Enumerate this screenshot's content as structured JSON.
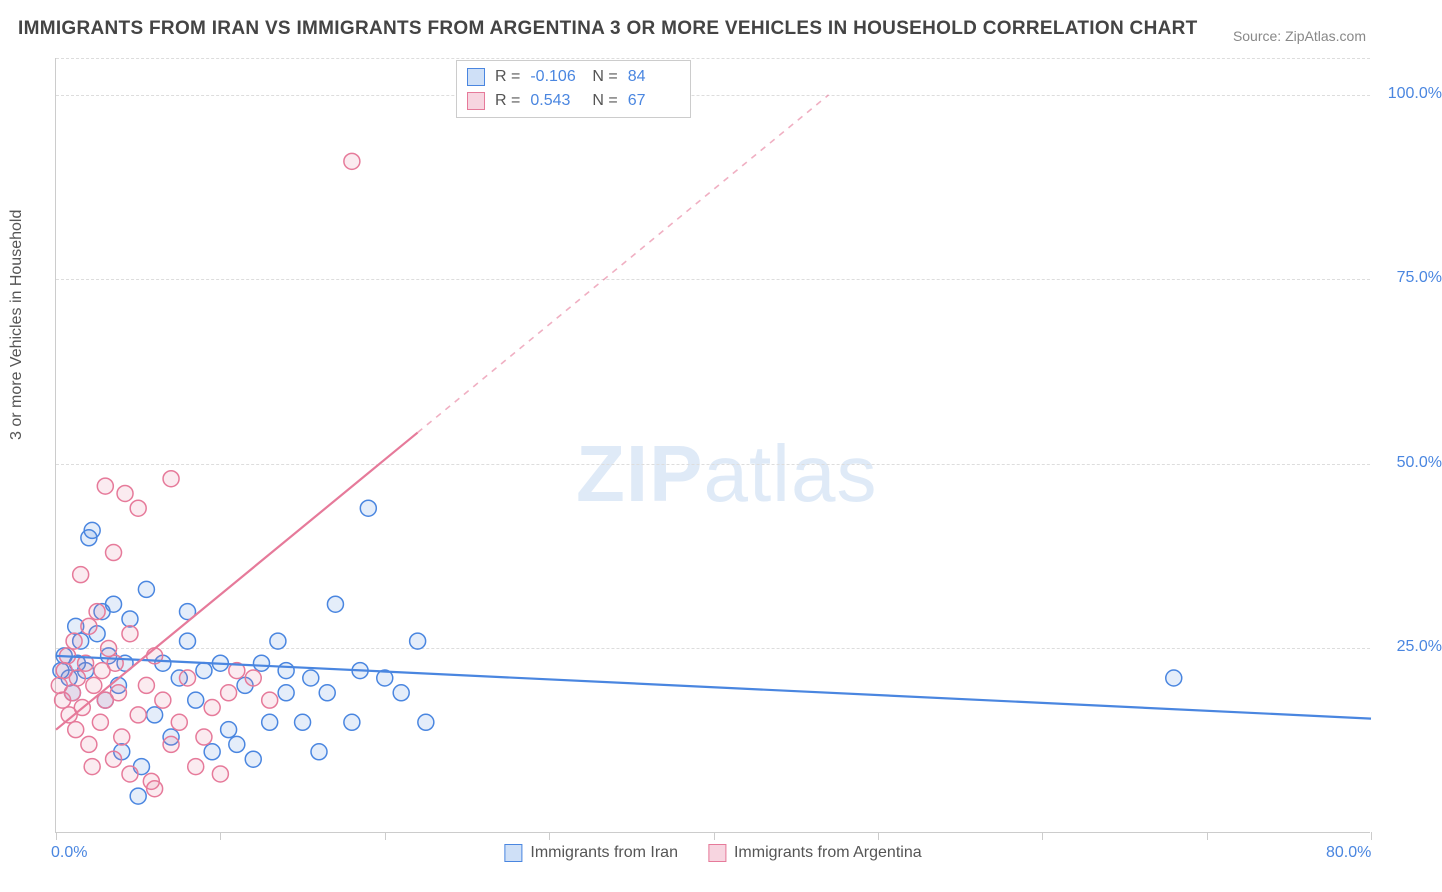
{
  "title": "IMMIGRANTS FROM IRAN VS IMMIGRANTS FROM ARGENTINA 3 OR MORE VEHICLES IN HOUSEHOLD CORRELATION CHART",
  "source": "Source: ZipAtlas.com",
  "ylabel": "3 or more Vehicles in Household",
  "watermark_bold": "ZIP",
  "watermark_light": "atlas",
  "chart": {
    "type": "scatter",
    "xlim": [
      0,
      80
    ],
    "ylim": [
      0,
      105
    ],
    "xtick_positions": [
      0,
      10,
      20,
      30,
      40,
      50,
      60,
      70,
      80
    ],
    "xtick_labels_shown": {
      "0": "0.0%",
      "80": "80.0%"
    },
    "ytick_positions": [
      25,
      50,
      75,
      100
    ],
    "ytick_labels": {
      "25": "25.0%",
      "50": "50.0%",
      "75": "75.0%",
      "100": "100.0%"
    },
    "grid_color": "#dddddd",
    "axis_color": "#cccccc",
    "background_color": "#ffffff",
    "marker_radius": 8,
    "marker_fill_opacity": 0.15,
    "marker_stroke_width": 1.5,
    "series": [
      {
        "name": "Immigrants from Iran",
        "color": "#4a86e0",
        "swatch_fill": "#cfe0f7",
        "swatch_border": "#4a86e0",
        "R": "-0.106",
        "N": "84",
        "trend": {
          "x1": 0,
          "y1": 24,
          "x2": 80,
          "y2": 15.5,
          "solid_to_x": 80
        },
        "points": [
          [
            0.3,
            22
          ],
          [
            0.5,
            24
          ],
          [
            0.8,
            21
          ],
          [
            1.0,
            19
          ],
          [
            1.2,
            28
          ],
          [
            1.3,
            23
          ],
          [
            1.5,
            26
          ],
          [
            1.8,
            22
          ],
          [
            2.0,
            40
          ],
          [
            2.2,
            41
          ],
          [
            2.5,
            27
          ],
          [
            2.8,
            30
          ],
          [
            3.0,
            18
          ],
          [
            3.2,
            24
          ],
          [
            3.5,
            31
          ],
          [
            3.8,
            20
          ],
          [
            4.0,
            11
          ],
          [
            4.2,
            23
          ],
          [
            4.5,
            29
          ],
          [
            5.0,
            5
          ],
          [
            5.2,
            9
          ],
          [
            5.5,
            33
          ],
          [
            6.0,
            16
          ],
          [
            6.5,
            23
          ],
          [
            7.0,
            13
          ],
          [
            7.5,
            21
          ],
          [
            8.0,
            26
          ],
          [
            8.0,
            30
          ],
          [
            8.5,
            18
          ],
          [
            9.0,
            22
          ],
          [
            9.5,
            11
          ],
          [
            10.0,
            23
          ],
          [
            10.5,
            14
          ],
          [
            11.0,
            12
          ],
          [
            11.5,
            20
          ],
          [
            12.0,
            10
          ],
          [
            12.5,
            23
          ],
          [
            13.0,
            15
          ],
          [
            13.5,
            26
          ],
          [
            14.0,
            22
          ],
          [
            14.0,
            19
          ],
          [
            15.0,
            15
          ],
          [
            15.5,
            21
          ],
          [
            16.0,
            11
          ],
          [
            16.5,
            19
          ],
          [
            17.0,
            31
          ],
          [
            18.0,
            15
          ],
          [
            18.5,
            22
          ],
          [
            19.0,
            44
          ],
          [
            20.0,
            21
          ],
          [
            21.0,
            19
          ],
          [
            22.0,
            26
          ],
          [
            22.5,
            15
          ],
          [
            68.0,
            21
          ]
        ]
      },
      {
        "name": "Immigrants from Argentina",
        "color": "#e67a9a",
        "swatch_fill": "#f7d5e0",
        "swatch_border": "#e67a9a",
        "R": "0.543",
        "N": "67",
        "trend": {
          "x1": 0,
          "y1": 14,
          "x2": 47,
          "y2": 100,
          "solid_to_x": 22
        },
        "points": [
          [
            0.2,
            20
          ],
          [
            0.4,
            18
          ],
          [
            0.5,
            22
          ],
          [
            0.7,
            24
          ],
          [
            0.8,
            16
          ],
          [
            1.0,
            19
          ],
          [
            1.1,
            26
          ],
          [
            1.2,
            14
          ],
          [
            1.3,
            21
          ],
          [
            1.5,
            35
          ],
          [
            1.6,
            17
          ],
          [
            1.8,
            23
          ],
          [
            2.0,
            12
          ],
          [
            2.0,
            28
          ],
          [
            2.2,
            9
          ],
          [
            2.3,
            20
          ],
          [
            2.5,
            30
          ],
          [
            2.7,
            15
          ],
          [
            2.8,
            22
          ],
          [
            3.0,
            18
          ],
          [
            3.0,
            47
          ],
          [
            3.2,
            25
          ],
          [
            3.5,
            10
          ],
          [
            3.5,
            38
          ],
          [
            3.6,
            23
          ],
          [
            3.8,
            19
          ],
          [
            4.0,
            13
          ],
          [
            4.2,
            46
          ],
          [
            4.5,
            8
          ],
          [
            4.5,
            27
          ],
          [
            5.0,
            16
          ],
          [
            5.0,
            44
          ],
          [
            5.5,
            20
          ],
          [
            5.8,
            7
          ],
          [
            6.0,
            24
          ],
          [
            6.0,
            6
          ],
          [
            6.5,
            18
          ],
          [
            7.0,
            12
          ],
          [
            7.0,
            48
          ],
          [
            7.5,
            15
          ],
          [
            8.0,
            21
          ],
          [
            8.5,
            9
          ],
          [
            9.0,
            13
          ],
          [
            9.5,
            17
          ],
          [
            10.0,
            8
          ],
          [
            10.5,
            19
          ],
          [
            11.0,
            22
          ],
          [
            12.0,
            21
          ],
          [
            13.0,
            18
          ],
          [
            18.0,
            91
          ]
        ]
      }
    ]
  }
}
